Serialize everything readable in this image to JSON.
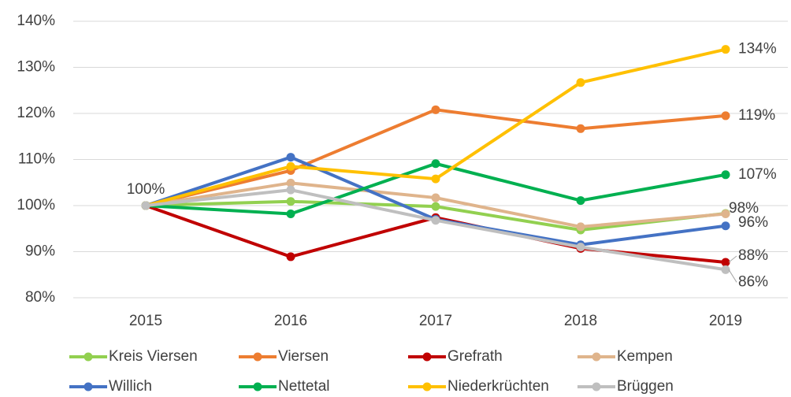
{
  "chart_data": {
    "type": "line",
    "categories": [
      "2015",
      "2016",
      "2017",
      "2018",
      "2019"
    ],
    "series": [
      {
        "name": "Kreis Viersen",
        "color": "#92d050",
        "values": [
          100,
          100.9,
          99.8,
          94.7,
          98.3
        ],
        "value_labels": [
          "100%",
          null,
          null,
          null,
          "98%"
        ]
      },
      {
        "name": "Viersen",
        "color": "#ed7d31",
        "values": [
          100,
          107.6,
          120.8,
          116.7,
          119.5
        ],
        "value_labels": [
          null,
          null,
          null,
          null,
          "119%"
        ]
      },
      {
        "name": "Grefrath",
        "color": "#c00000",
        "values": [
          100,
          88.9,
          97.4,
          90.7,
          87.7
        ],
        "value_labels": [
          null,
          null,
          null,
          null,
          "88%"
        ]
      },
      {
        "name": "Kempen",
        "color": "#dfb48c",
        "values": [
          100,
          104.9,
          101.7,
          95.4,
          98.2
        ],
        "value_labels": null
      },
      {
        "name": "Willich",
        "color": "#4472c4",
        "values": [
          100,
          110.5,
          97.0,
          91.5,
          95.6
        ],
        "value_labels": [
          null,
          null,
          null,
          null,
          "96%"
        ]
      },
      {
        "name": "Nettetal",
        "color": "#00b050",
        "values": [
          100,
          98.2,
          109.1,
          101.1,
          106.7
        ],
        "value_labels": [
          null,
          null,
          null,
          null,
          "107%"
        ]
      },
      {
        "name": "Niederkrüchten",
        "color": "#ffc000",
        "values": [
          100,
          108.5,
          105.8,
          126.7,
          133.9
        ],
        "value_labels": [
          null,
          null,
          null,
          null,
          "134%"
        ]
      },
      {
        "name": "Brüggen",
        "color": "#bfbfbf",
        "values": [
          100,
          103.4,
          96.8,
          91.0,
          86.1
        ],
        "value_labels": [
          null,
          null,
          null,
          null,
          "86%"
        ]
      }
    ],
    "ylim": [
      80,
      140
    ],
    "yticks": [
      {
        "value": 80,
        "label": "80%"
      },
      {
        "value": 90,
        "label": "90%"
      },
      {
        "value": 100,
        "label": "100%"
      },
      {
        "value": 110,
        "label": "110%"
      },
      {
        "value": 120,
        "label": "120%"
      },
      {
        "value": 130,
        "label": "130%"
      },
      {
        "value": 140,
        "label": "140%"
      }
    ],
    "grid": true,
    "legend": "bottom"
  }
}
